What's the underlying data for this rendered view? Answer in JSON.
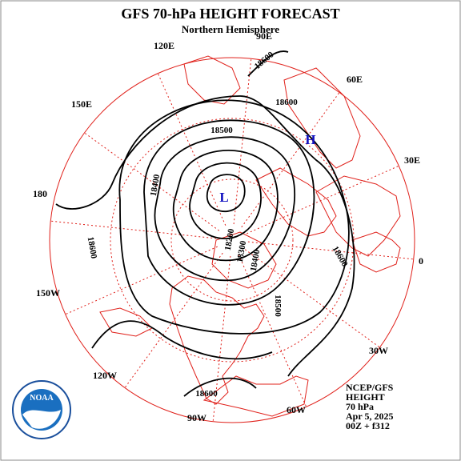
{
  "header": {
    "title": "GFS 70-hPa HEIGHT FORECAST",
    "subtitle": "Northern Hemisphere"
  },
  "longitude_labels": [
    "90E",
    "60E",
    "30E",
    "0",
    "30W",
    "60W",
    "90W",
    "120W",
    "150W",
    "180",
    "150E",
    "120E"
  ],
  "contour_labels": [
    "18600",
    "18600",
    "18500",
    "18400",
    "18600",
    "18200",
    "18300",
    "18400",
    "18500",
    "18600",
    "18600"
  ],
  "centers": {
    "low": "L",
    "high": "H"
  },
  "logo": "NOAA",
  "info": [
    "NCEP/GFS",
    "HEIGHT",
    "70 hPa",
    "Apr 5, 2025",
    "00Z + f312"
  ]
}
